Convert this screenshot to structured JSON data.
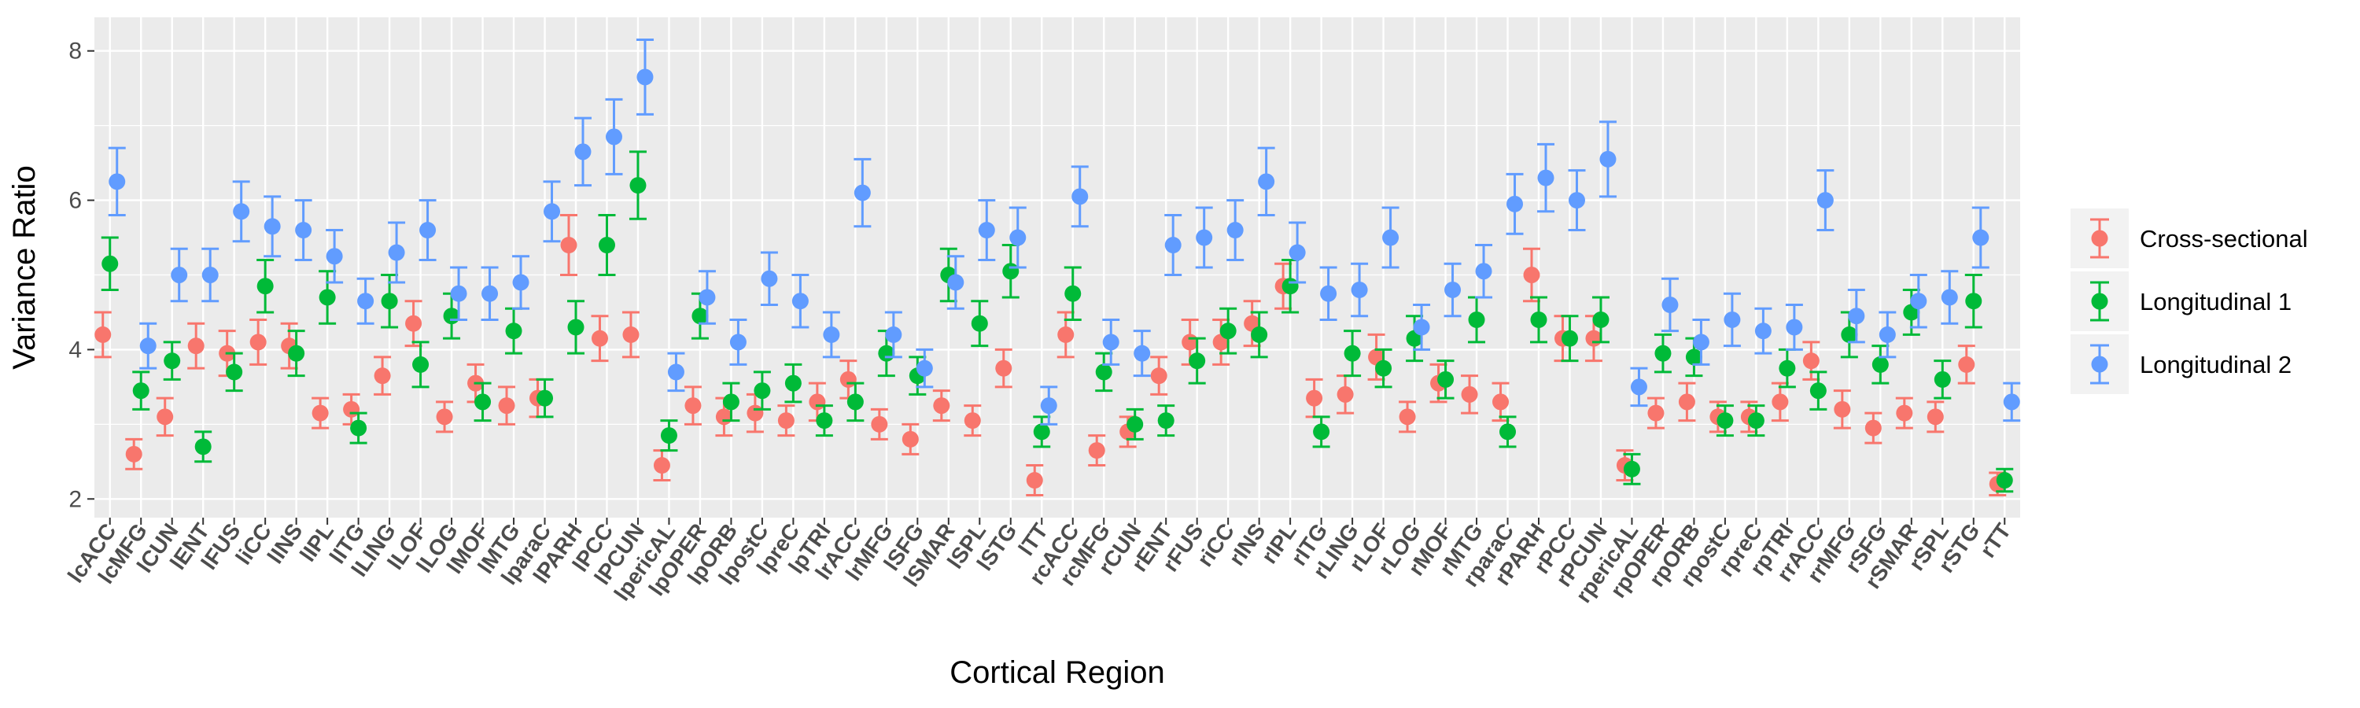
{
  "chart_data": {
    "type": "scatter",
    "title": "",
    "xlabel": "Cortical Region",
    "ylabel": "Variance Ratio",
    "ylim": [
      1.75,
      8.45
    ],
    "yticks": [
      2,
      4,
      6,
      8
    ],
    "grid": true,
    "legend_position": "right",
    "categories": [
      "lcACC",
      "lcMFG",
      "lCUN",
      "lENT",
      "lFUS",
      "liCC",
      "lINS",
      "lIPL",
      "lITG",
      "lLING",
      "lLOF",
      "lLOG",
      "lMOF",
      "lMTG",
      "lparaC",
      "lPARH",
      "lPCC",
      "lPCUN",
      "lpericAL",
      "lpOPER",
      "lpORB",
      "lpostC",
      "lpreC",
      "lpTRI",
      "lrACC",
      "lrMFG",
      "lSFG",
      "lSMAR",
      "lSPL",
      "lSTG",
      "lTT",
      "rcACC",
      "rcMFG",
      "rCUN",
      "rENT",
      "rFUS",
      "riCC",
      "rINS",
      "rIPL",
      "rITG",
      "rLING",
      "rLOF",
      "rLOG",
      "rMOF",
      "rMTG",
      "rparaC",
      "rPARH",
      "rPCC",
      "rPCUN",
      "rpericAL",
      "rpOPER",
      "rpORB",
      "rpostC",
      "rpreC",
      "rpTRI",
      "rrACC",
      "rrMFG",
      "rSFG",
      "rSMAR",
      "rSPL",
      "rSTG",
      "rTT"
    ],
    "series": [
      {
        "name": "Cross-sectional",
        "color": "#F8766D",
        "values": [
          4.2,
          2.6,
          3.1,
          4.05,
          3.95,
          4.1,
          4.05,
          3.15,
          3.2,
          3.65,
          4.35,
          3.1,
          3.55,
          3.25,
          3.35,
          5.4,
          4.15,
          4.2,
          2.45,
          3.25,
          3.1,
          3.15,
          3.05,
          3.3,
          3.6,
          3.0,
          2.8,
          3.25,
          3.05,
          3.75,
          2.25,
          4.2,
          2.65,
          2.9,
          3.65,
          4.1,
          4.1,
          4.35,
          4.85,
          3.35,
          3.4,
          3.9,
          3.1,
          3.55,
          3.4,
          3.3,
          5.0,
          4.15,
          4.15,
          2.45,
          3.15,
          3.3,
          3.1,
          3.1,
          3.3,
          3.85,
          3.2,
          2.95,
          3.15,
          3.1,
          3.8,
          2.2
        ],
        "err": [
          0.3,
          0.2,
          0.25,
          0.3,
          0.3,
          0.3,
          0.3,
          0.2,
          0.2,
          0.25,
          0.3,
          0.2,
          0.25,
          0.25,
          0.25,
          0.4,
          0.3,
          0.3,
          0.2,
          0.25,
          0.25,
          0.25,
          0.2,
          0.25,
          0.25,
          0.2,
          0.2,
          0.2,
          0.2,
          0.25,
          0.2,
          0.3,
          0.2,
          0.2,
          0.25,
          0.3,
          0.3,
          0.3,
          0.3,
          0.25,
          0.25,
          0.3,
          0.2,
          0.25,
          0.25,
          0.25,
          0.35,
          0.3,
          0.3,
          0.2,
          0.2,
          0.25,
          0.2,
          0.2,
          0.25,
          0.25,
          0.25,
          0.2,
          0.2,
          0.2,
          0.25,
          0.15
        ]
      },
      {
        "name": "Longitudinal 1",
        "color": "#00BA38",
        "values": [
          5.15,
          3.45,
          3.85,
          2.7,
          3.7,
          4.85,
          3.95,
          4.7,
          2.95,
          4.65,
          3.8,
          4.45,
          3.3,
          4.25,
          3.35,
          4.3,
          5.4,
          6.2,
          2.85,
          4.45,
          3.3,
          3.45,
          3.55,
          3.05,
          3.3,
          3.95,
          3.65,
          5.0,
          4.35,
          5.05,
          2.9,
          4.75,
          3.7,
          3.0,
          3.05,
          3.85,
          4.25,
          4.2,
          4.85,
          2.9,
          3.95,
          3.75,
          4.15,
          3.6,
          4.4,
          2.9,
          4.4,
          4.15,
          4.4,
          2.4,
          3.95,
          3.9,
          3.05,
          3.05,
          3.75,
          3.45,
          4.2,
          3.8,
          4.5,
          3.6,
          4.65,
          2.25
        ],
        "err": [
          0.35,
          0.25,
          0.25,
          0.2,
          0.25,
          0.35,
          0.3,
          0.35,
          0.2,
          0.35,
          0.3,
          0.3,
          0.25,
          0.3,
          0.25,
          0.35,
          0.4,
          0.45,
          0.2,
          0.3,
          0.25,
          0.25,
          0.25,
          0.2,
          0.25,
          0.3,
          0.25,
          0.35,
          0.3,
          0.35,
          0.2,
          0.35,
          0.25,
          0.2,
          0.2,
          0.3,
          0.3,
          0.3,
          0.35,
          0.2,
          0.3,
          0.25,
          0.3,
          0.25,
          0.3,
          0.2,
          0.3,
          0.3,
          0.3,
          0.2,
          0.25,
          0.25,
          0.2,
          0.2,
          0.25,
          0.25,
          0.3,
          0.25,
          0.3,
          0.25,
          0.35,
          0.15
        ]
      },
      {
        "name": "Longitudinal 2",
        "color": "#619CFF",
        "values": [
          6.25,
          4.05,
          5.0,
          5.0,
          5.85,
          5.65,
          5.6,
          5.25,
          4.65,
          5.3,
          5.6,
          4.75,
          4.75,
          4.9,
          5.85,
          6.65,
          6.85,
          7.65,
          3.7,
          4.7,
          4.1,
          4.95,
          4.65,
          4.2,
          6.1,
          4.2,
          3.75,
          4.9,
          5.6,
          5.5,
          3.25,
          6.05,
          4.1,
          3.95,
          5.4,
          5.5,
          5.6,
          6.25,
          5.3,
          4.75,
          4.8,
          5.5,
          4.3,
          4.8,
          5.05,
          5.95,
          6.3,
          6.0,
          6.55,
          3.5,
          4.6,
          4.1,
          4.4,
          4.25,
          4.3,
          6.0,
          4.45,
          4.2,
          4.65,
          4.7,
          5.5,
          3.3
        ],
        "err": [
          0.45,
          0.3,
          0.35,
          0.35,
          0.4,
          0.4,
          0.4,
          0.35,
          0.3,
          0.4,
          0.4,
          0.35,
          0.35,
          0.35,
          0.4,
          0.45,
          0.5,
          0.5,
          0.25,
          0.35,
          0.3,
          0.35,
          0.35,
          0.3,
          0.45,
          0.3,
          0.25,
          0.35,
          0.4,
          0.4,
          0.25,
          0.4,
          0.3,
          0.3,
          0.4,
          0.4,
          0.4,
          0.45,
          0.4,
          0.35,
          0.35,
          0.4,
          0.3,
          0.35,
          0.35,
          0.4,
          0.45,
          0.4,
          0.5,
          0.25,
          0.35,
          0.3,
          0.35,
          0.3,
          0.3,
          0.4,
          0.35,
          0.3,
          0.35,
          0.35,
          0.4,
          0.25
        ]
      }
    ]
  }
}
